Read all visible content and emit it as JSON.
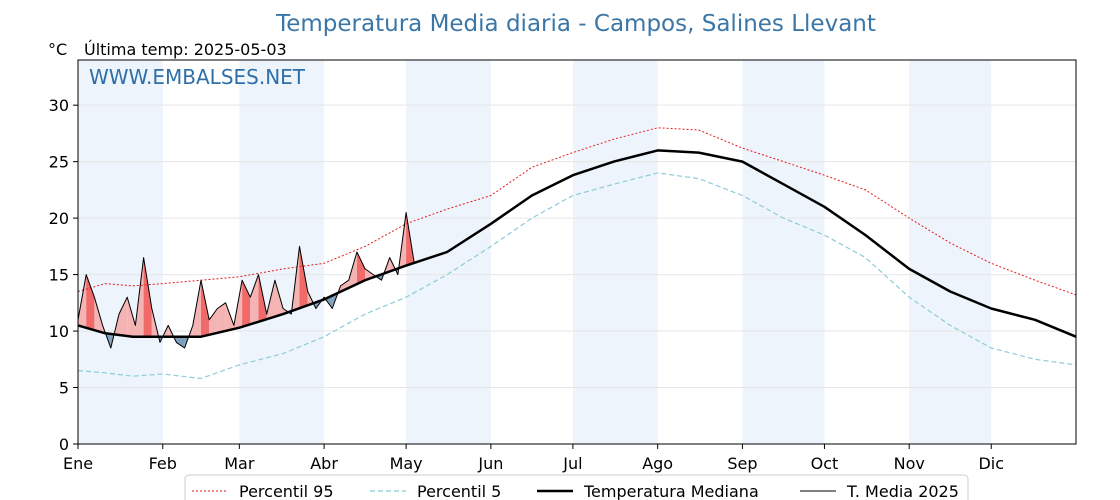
{
  "page": {
    "title": "Temperatura Media diaria - Campos, Salines Llevant",
    "unit_label": "°C",
    "last_temp_label": "Última temp: 2025-05-03",
    "watermark": "WWW.EMBALSES.NET"
  },
  "colors": {
    "title": "#3b76a6",
    "p95": "#e41a1c",
    "p5": "#8ecbd8",
    "median": "#000000",
    "current": "#000000",
    "above_fill": "#f4b4b4",
    "above_fill_strong": "#f06a6a",
    "below_fill": "#7f9fbe",
    "month_band": "#eef4fb"
  },
  "chart_data": {
    "type": "line",
    "title": "Temperatura Media diaria - Campos, Salines Llevant",
    "ylabel": "°C",
    "ylim": [
      0,
      34
    ],
    "yticks": [
      0,
      5,
      10,
      15,
      20,
      25,
      30
    ],
    "xlim": [
      0,
      365
    ],
    "month_ticks": [
      {
        "label": "Ene",
        "day": 0
      },
      {
        "label": "Feb",
        "day": 31
      },
      {
        "label": "Mar",
        "day": 59
      },
      {
        "label": "Abr",
        "day": 90
      },
      {
        "label": "May",
        "day": 120
      },
      {
        "label": "Jun",
        "day": 151
      },
      {
        "label": "Jul",
        "day": 181
      },
      {
        "label": "Ago",
        "day": 212
      },
      {
        "label": "Sep",
        "day": 243
      },
      {
        "label": "Oct",
        "day": 273
      },
      {
        "label": "Nov",
        "day": 304
      },
      {
        "label": "Dic",
        "day": 334
      }
    ],
    "shaded_months": [
      "Ene",
      "Mar",
      "May",
      "Jul",
      "Sep",
      "Nov"
    ],
    "grid": true,
    "legend_position": "bottom",
    "series": [
      {
        "name": "Percentil 95",
        "style": "dotted-red",
        "x": [
          0,
          10,
          20,
          31,
          45,
          59,
          75,
          90,
          105,
          120,
          135,
          151,
          166,
          181,
          196,
          212,
          227,
          243,
          258,
          273,
          288,
          304,
          319,
          334,
          350,
          365
        ],
        "values": [
          13.5,
          14.2,
          14.0,
          14.2,
          14.5,
          14.8,
          15.5,
          16.0,
          17.5,
          19.5,
          20.8,
          22.0,
          24.5,
          25.8,
          27.0,
          28.0,
          27.8,
          26.2,
          25.0,
          23.8,
          22.5,
          20.0,
          17.8,
          16.0,
          14.5,
          13.2
        ]
      },
      {
        "name": "Percentil 5",
        "style": "dashed-lightblue",
        "x": [
          0,
          10,
          20,
          31,
          45,
          59,
          75,
          90,
          105,
          120,
          135,
          151,
          166,
          181,
          196,
          212,
          227,
          243,
          258,
          273,
          288,
          304,
          319,
          334,
          350,
          365
        ],
        "values": [
          6.5,
          6.3,
          6.0,
          6.2,
          5.8,
          7.0,
          8.0,
          9.5,
          11.5,
          13.0,
          15.0,
          17.5,
          20.0,
          22.0,
          23.0,
          24.0,
          23.5,
          22.0,
          20.0,
          18.5,
          16.5,
          13.0,
          10.5,
          8.5,
          7.5,
          7.0
        ]
      },
      {
        "name": "Temperatura Mediana",
        "style": "thick-black",
        "x": [
          0,
          10,
          20,
          31,
          45,
          59,
          75,
          90,
          105,
          120,
          135,
          151,
          166,
          181,
          196,
          212,
          227,
          243,
          258,
          273,
          288,
          304,
          319,
          334,
          350,
          365
        ],
        "values": [
          10.5,
          9.8,
          9.5,
          9.5,
          9.5,
          10.3,
          11.5,
          12.8,
          14.5,
          15.8,
          17.0,
          19.5,
          22.0,
          23.8,
          25.0,
          26.0,
          25.8,
          25.0,
          23.0,
          21.0,
          18.5,
          15.5,
          13.5,
          12.0,
          11.0,
          9.5
        ]
      },
      {
        "name": "T. Media 2025",
        "style": "thin-black",
        "x": [
          0,
          3,
          6,
          9,
          12,
          15,
          18,
          21,
          24,
          27,
          30,
          33,
          36,
          39,
          42,
          45,
          48,
          51,
          54,
          57,
          60,
          63,
          66,
          69,
          72,
          75,
          78,
          81,
          84,
          87,
          90,
          93,
          96,
          99,
          102,
          105,
          108,
          111,
          114,
          117,
          120,
          123
        ],
        "values": [
          11.0,
          15.0,
          13.0,
          10.5,
          8.5,
          11.5,
          13.0,
          10.5,
          16.5,
          12.0,
          9.0,
          10.5,
          9.0,
          8.5,
          10.5,
          14.5,
          11.0,
          12.0,
          12.5,
          10.5,
          14.5,
          13.0,
          15.0,
          11.5,
          14.5,
          12.0,
          11.5,
          17.5,
          13.5,
          12.0,
          13.0,
          12.0,
          14.0,
          14.5,
          17.0,
          15.5,
          15.0,
          14.5,
          16.5,
          15.0,
          20.5,
          16.0
        ]
      }
    ]
  },
  "legend": {
    "items": [
      {
        "label": "Percentil 95",
        "style": "dotted-red"
      },
      {
        "label": "Percentil 5",
        "style": "dashed-lightblue"
      },
      {
        "label": "Temperatura Mediana",
        "style": "thick-black"
      },
      {
        "label": "T. Media 2025",
        "style": "thin-black"
      }
    ]
  }
}
